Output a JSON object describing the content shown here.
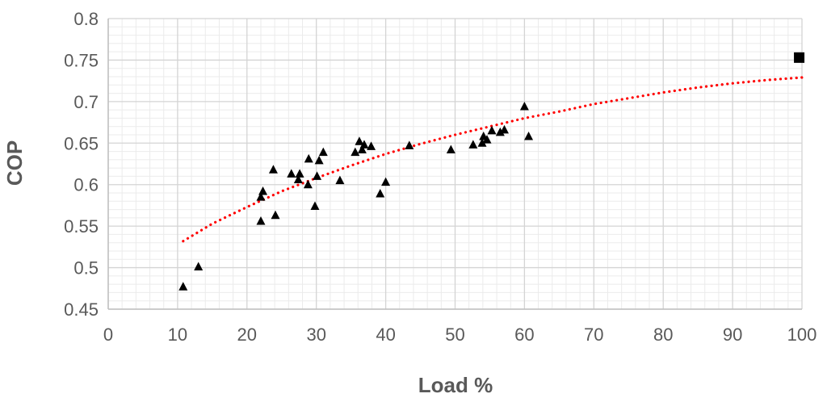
{
  "chart_data": {
    "type": "scatter",
    "title": "",
    "xlabel": "Load %",
    "ylabel": "COP",
    "xlim": [
      0,
      100
    ],
    "ylim": [
      0.45,
      0.8
    ],
    "x_ticks": [
      0,
      10,
      20,
      30,
      40,
      50,
      60,
      70,
      80,
      90,
      100
    ],
    "y_ticks": [
      0.45,
      0.5,
      0.55,
      0.6,
      0.65,
      0.7,
      0.75,
      0.8
    ],
    "grid": true,
    "minor_grid": true,
    "legend": "none",
    "series": [
      {
        "marker": "triangle",
        "color": "#000000",
        "points": [
          [
            10.8,
            0.477
          ],
          [
            13,
            0.501
          ],
          [
            22,
            0.556
          ],
          [
            22,
            0.585
          ],
          [
            22.3,
            0.592
          ],
          [
            23.8,
            0.618
          ],
          [
            24.1,
            0.563
          ],
          [
            26.4,
            0.613
          ],
          [
            27.4,
            0.606
          ],
          [
            27.6,
            0.613
          ],
          [
            28.8,
            0.6
          ],
          [
            28.9,
            0.631
          ],
          [
            29.8,
            0.574
          ],
          [
            30.1,
            0.61
          ],
          [
            30.4,
            0.629
          ],
          [
            31.0,
            0.639
          ],
          [
            33.4,
            0.605
          ],
          [
            35.6,
            0.639
          ],
          [
            36.2,
            0.652
          ],
          [
            36.6,
            0.642
          ],
          [
            36.9,
            0.648
          ],
          [
            37.9,
            0.646
          ],
          [
            39.2,
            0.589
          ],
          [
            40.0,
            0.603
          ],
          [
            43.4,
            0.647
          ],
          [
            49.4,
            0.642
          ],
          [
            52.6,
            0.648
          ],
          [
            53.9,
            0.65
          ],
          [
            54.1,
            0.658
          ],
          [
            54.6,
            0.654
          ],
          [
            55.3,
            0.665
          ],
          [
            56.5,
            0.663
          ],
          [
            57.1,
            0.666
          ],
          [
            60.0,
            0.694
          ],
          [
            60.6,
            0.658
          ]
        ]
      },
      {
        "marker": "square",
        "color": "#000000",
        "points": [
          [
            99.6,
            0.753
          ]
        ]
      }
    ],
    "trendline": {
      "style": "dotted",
      "color": "#ff0000",
      "x_range": [
        10.8,
        100
      ],
      "points": [
        [
          10.8,
          0.532
        ],
        [
          15,
          0.553
        ],
        [
          20,
          0.573
        ],
        [
          25,
          0.592
        ],
        [
          30,
          0.608
        ],
        [
          35,
          0.623
        ],
        [
          40,
          0.637
        ],
        [
          45,
          0.649
        ],
        [
          50,
          0.66
        ],
        [
          55,
          0.67
        ],
        [
          60,
          0.68
        ],
        [
          65,
          0.688
        ],
        [
          70,
          0.697
        ],
        [
          75,
          0.704
        ],
        [
          80,
          0.711
        ],
        [
          85,
          0.717
        ],
        [
          90,
          0.722
        ],
        [
          95,
          0.726
        ],
        [
          100,
          0.729
        ]
      ]
    }
  }
}
